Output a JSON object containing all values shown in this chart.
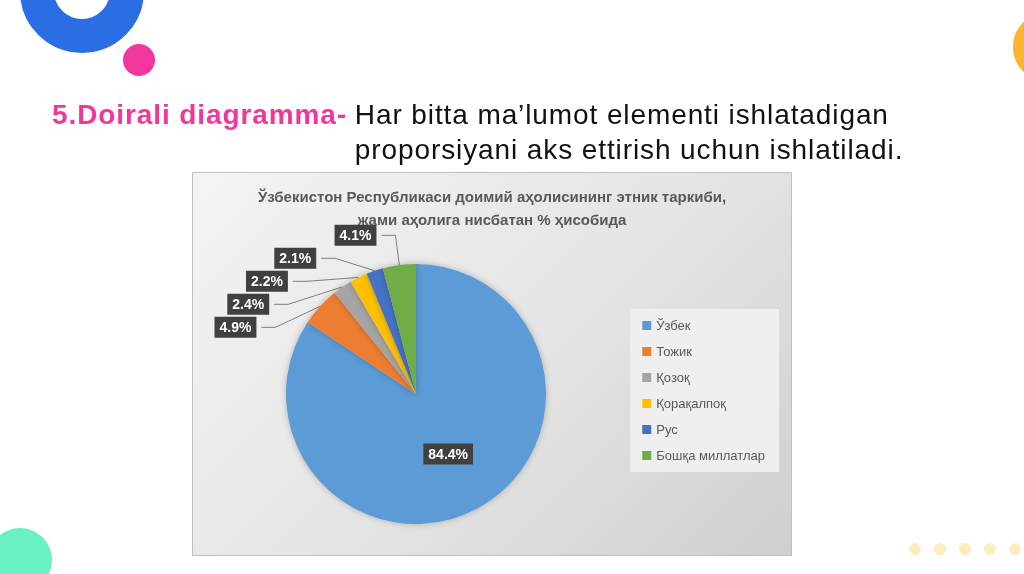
{
  "chart_data": {
    "type": "pie",
    "title": "Ўзбекистон Республикаси доимий аҳолисининг этник таркиби, жами аҳолига нисбатан % ҳисобида",
    "categories": [
      "Ўзбек",
      "Тожик",
      "Қозоқ",
      "Қорақалпоқ",
      "Рус",
      "Бошқа миллатлар"
    ],
    "values": [
      84.4,
      4.9,
      2.4,
      2.2,
      2.1,
      4.1
    ],
    "colors": [
      "#5b9bd5",
      "#ed7d31",
      "#a5a5a5",
      "#ffc000",
      "#4472c4",
      "#70ad47"
    ],
    "value_labels": [
      "84.4%",
      "4.9%",
      "2.4%",
      "2.2%",
      "2.1%",
      "4.1%"
    ],
    "legend": "right",
    "annotations": [
      "5.Doirali diagramma-",
      "Har bitta ma’lumot elementi ishlatadigan proporsiyani aks ettirish uchun ishlatiladi."
    ]
  }
}
